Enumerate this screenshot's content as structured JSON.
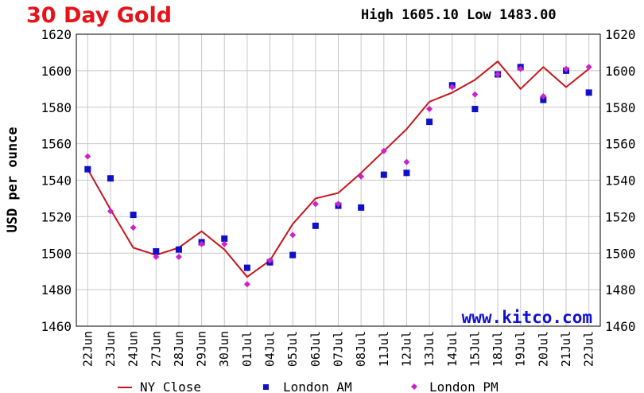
{
  "header": {
    "title": "30 Day Gold",
    "high_low": "High 1605.10 Low 1483.00"
  },
  "watermark": "www.kitco.com",
  "legend": {
    "ny_close": "NY Close",
    "london_am": "London AM",
    "london_pm": "London PM"
  },
  "colors": {
    "ny_close": "#c4161c",
    "london_am": "#1010c8",
    "london_pm": "#cc22cc",
    "title": "#e8121a",
    "watermark": "#1010d0",
    "grid": "#c8c8c8"
  },
  "chart_data": {
    "type": "line",
    "title": "30 Day Gold",
    "ylabel": "USD per ounce",
    "xlabel": "",
    "ylim": [
      1460,
      1620
    ],
    "yticks": [
      1460,
      1480,
      1500,
      1520,
      1540,
      1560,
      1580,
      1600,
      1620
    ],
    "grid": true,
    "legend_position": "bottom",
    "categories": [
      "22Jun",
      "23Jun",
      "24Jun",
      "27Jun",
      "28Jun",
      "29Jun",
      "30Jun",
      "01Jul",
      "04Jul",
      "05Jul",
      "06Jul",
      "07Jul",
      "08Jul",
      "11Jul",
      "12Jul",
      "13Jul",
      "14Jul",
      "15Jul",
      "18Jul",
      "19Jul",
      "20Jul",
      "21Jul",
      "22Jul"
    ],
    "series": [
      {
        "name": "NY Close",
        "style": "line",
        "values": [
          1546,
          1524,
          1503,
          1499,
          1503,
          1512,
          1502,
          1487,
          1496,
          1516,
          1530,
          1533,
          1544,
          1556,
          1568,
          1583,
          1588,
          1595,
          1605.1,
          1590,
          1602,
          1591,
          1601
        ]
      },
      {
        "name": "London AM",
        "style": "square",
        "values": [
          1546,
          1541,
          1521,
          1501,
          1502,
          1506,
          1508,
          1492,
          1495,
          1499,
          1515,
          1526,
          1525,
          1543,
          1544,
          1572,
          1592,
          1579,
          1598,
          1602,
          1584,
          1600,
          1588
        ]
      },
      {
        "name": "London PM",
        "style": "diamond",
        "values": [
          1553,
          1523,
          1514,
          1498,
          1498,
          1505,
          1505,
          1483,
          1496,
          1510,
          1527,
          1527,
          1542,
          1556,
          1550,
          1579,
          1591,
          1587,
          1598,
          1601,
          1586,
          1601,
          1602
        ]
      }
    ]
  }
}
